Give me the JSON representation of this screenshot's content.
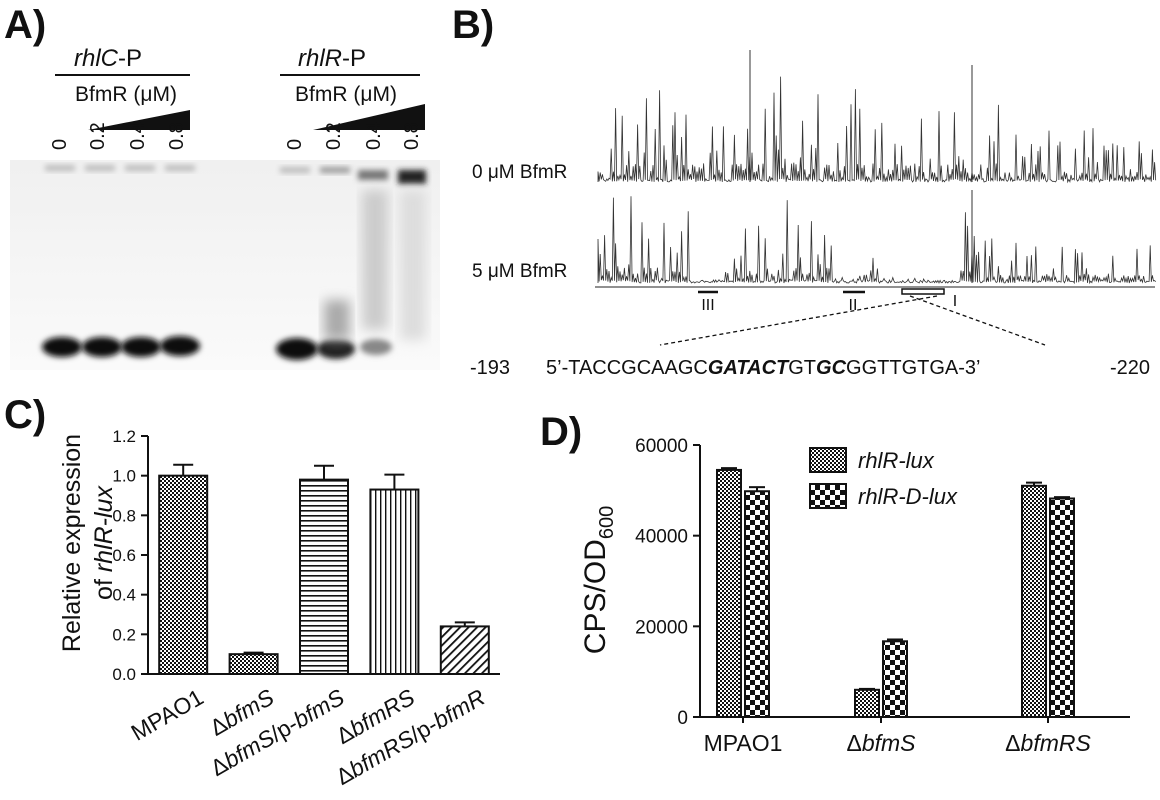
{
  "panels": {
    "A": {
      "label": "A)",
      "groups": [
        {
          "promoter_italic": "rhlC",
          "promoter_suffix": "-P",
          "protein": "BfmR (μM)",
          "lanes": [
            "0",
            "0.2",
            "0.4",
            "0.8"
          ]
        },
        {
          "promoter_italic": "rhlR",
          "promoter_suffix": "-P",
          "protein": "BfmR (μM)",
          "lanes": [
            "0",
            "0.2",
            "0.4",
            "0.8"
          ]
        }
      ]
    },
    "B": {
      "label": "B)",
      "traces": [
        "0 μM BfmR",
        "5 μM BfmR"
      ],
      "sites": [
        "III",
        "II",
        "I"
      ],
      "seq_start": "-193",
      "seq_end": "-220",
      "seq_parts": [
        {
          "text": "5’-TACCGCAAGC",
          "style": "normal"
        },
        {
          "text": "GATACT",
          "style": "bolditalic"
        },
        {
          "text": "GT",
          "style": "normal"
        },
        {
          "text": "GC",
          "style": "bolditalic"
        },
        {
          "text": "GGTTGTGA-3’",
          "style": "normal"
        }
      ]
    },
    "C": {
      "label": "C)"
    },
    "D": {
      "label": "D)"
    }
  },
  "chart_data": [
    {
      "panel": "C",
      "type": "bar",
      "ylabel_line1": "Relative expression",
      "ylabel_line2_prefix": "of ",
      "ylabel_line2_italic": "rhlR-lux",
      "ylim": [
        0,
        1.2
      ],
      "yticks": [
        "0.0",
        "0.2",
        "0.4",
        "0.6",
        "0.8",
        "1.0",
        "1.2"
      ],
      "categories": [
        [
          {
            "t": "MPAO1",
            "i": false
          }
        ],
        [
          {
            "t": "Δ",
            "i": false
          },
          {
            "t": "bfmS",
            "i": true
          }
        ],
        [
          {
            "t": "Δ",
            "i": false
          },
          {
            "t": "bfmS",
            "i": true
          },
          {
            "t": "/p-",
            "i": false
          },
          {
            "t": "bfmS",
            "i": true
          }
        ],
        [
          {
            "t": "Δ",
            "i": false
          },
          {
            "t": "bfmRS",
            "i": true
          }
        ],
        [
          {
            "t": "Δ",
            "i": false
          },
          {
            "t": "bfmRS",
            "i": true
          },
          {
            "t": "/p-",
            "i": false
          },
          {
            "t": "bfmR",
            "i": true
          }
        ]
      ],
      "values": [
        1.0,
        0.1,
        0.98,
        0.93,
        0.24
      ],
      "errors": [
        0.055,
        0.008,
        0.07,
        0.075,
        0.02
      ],
      "patterns": [
        "checker",
        "checker",
        "hlines",
        "vlines",
        "diag"
      ]
    },
    {
      "panel": "D",
      "type": "bar",
      "ylabel_main": "CPS/OD",
      "ylabel_sub": "600",
      "ylim": [
        0,
        60000
      ],
      "yticks": [
        "0",
        "20000",
        "40000",
        "60000"
      ],
      "categories": [
        [
          {
            "t": "MPAO1",
            "i": false
          }
        ],
        [
          {
            "t": "Δ",
            "i": false
          },
          {
            "t": "bfmS",
            "i": true
          }
        ],
        [
          {
            "t": "Δ",
            "i": false
          },
          {
            "t": "bfmRS",
            "i": true
          }
        ]
      ],
      "series": [
        {
          "name": "rhlR-lux",
          "values": [
            54500,
            6000,
            51000
          ],
          "errors": [
            400,
            200,
            700
          ],
          "pattern": "checker"
        },
        {
          "name": "rhlR-D-lux",
          "values": [
            49800,
            16700,
            48200
          ],
          "errors": [
            900,
            400,
            300
          ],
          "pattern": "bigchecker"
        }
      ],
      "legend_position": "top-center"
    }
  ]
}
